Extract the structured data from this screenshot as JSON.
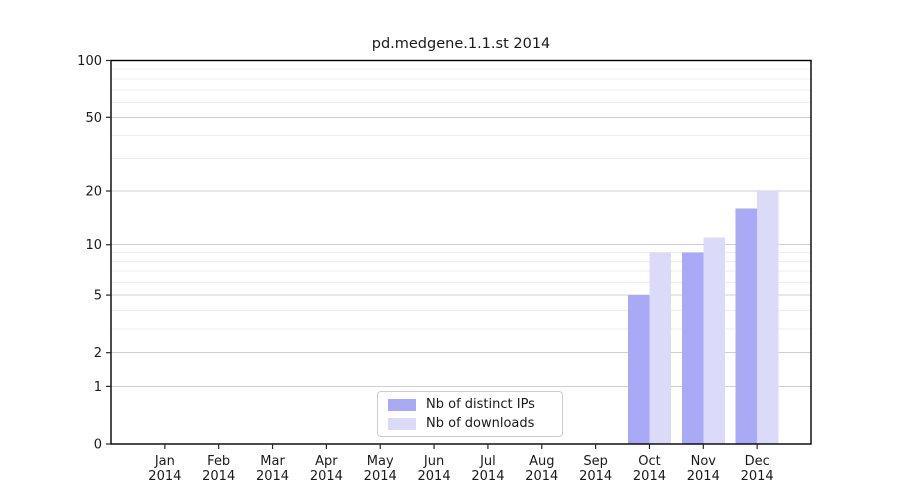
{
  "chart_data": {
    "type": "bar",
    "title": "pd.medgene.1.1.st 2014",
    "categories": [
      "Jan 2014",
      "Feb 2014",
      "Mar 2014",
      "Apr 2014",
      "May 2014",
      "Jun 2014",
      "Jul 2014",
      "Aug 2014",
      "Sep 2014",
      "Oct 2014",
      "Nov 2014",
      "Dec 2014"
    ],
    "series": [
      {
        "name": "Nb of distinct IPs",
        "color": "#a9a9f5",
        "values": [
          0,
          0,
          0,
          0,
          0,
          0,
          0,
          0,
          0,
          5,
          9,
          16
        ]
      },
      {
        "name": "Nb of downloads",
        "color": "#dbdbf9",
        "values": [
          0,
          0,
          0,
          0,
          0,
          0,
          0,
          0,
          0,
          9,
          11,
          20
        ]
      }
    ],
    "xlabel": "",
    "ylabel": "",
    "yscale": "log1p",
    "ylim": [
      0,
      100
    ],
    "y_major_ticks": [
      0,
      1,
      2,
      5,
      10,
      20,
      50,
      100
    ],
    "y_minor_ticks": [
      3,
      4,
      6,
      7,
      8,
      9,
      30,
      40,
      60,
      70,
      80,
      90
    ],
    "grid": true,
    "legend_position": "lower center",
    "colors": {
      "major_grid": "#cfcfcf",
      "minor_grid": "#ededed",
      "spine": "#000000",
      "tick": "#262626",
      "text": "#1a1a1a"
    }
  }
}
